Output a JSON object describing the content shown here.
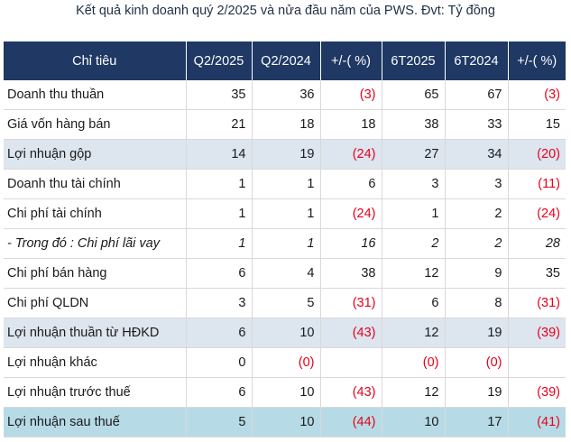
{
  "title": "Kết quả kinh doanh quý 2/2025 và nửa đầu năm của PWS. Đvt: Tỷ đồng",
  "columns": [
    "Chỉ tiêu",
    "Q2/2025",
    "Q2/2024",
    "+/-( %)",
    "6T2025",
    "6T2024",
    "+/-( %)"
  ],
  "rows": [
    {
      "label": "Doanh thu thuần",
      "cells": [
        "35",
        "36",
        "(3)",
        "65",
        "67",
        "(3)"
      ]
    },
    {
      "label": "Giá vốn hàng bán",
      "cells": [
        "21",
        "18",
        "18",
        "38",
        "33",
        "15"
      ]
    },
    {
      "label": "Lợi nhuận gộp",
      "cells": [
        "14",
        "19",
        "(24)",
        "27",
        "34",
        "(20)"
      ]
    },
    {
      "label": "Doanh thu tài chính",
      "cells": [
        "1",
        "1",
        "6",
        "3",
        "3",
        "(11)"
      ]
    },
    {
      "label": "Chi phí tài chính",
      "cells": [
        "1",
        "1",
        "(24)",
        "1",
        "2",
        "(24)"
      ]
    },
    {
      "label": "- Trong đó : Chi phí lãi vay",
      "cells": [
        "1",
        "1",
        "16",
        "2",
        "2",
        "28"
      ]
    },
    {
      "label": "Chi phí bán hàng",
      "cells": [
        "6",
        "4",
        "38",
        "12",
        "9",
        "35"
      ]
    },
    {
      "label": "Chi phí QLDN",
      "cells": [
        "3",
        "5",
        "(31)",
        "6",
        "8",
        "(31)"
      ]
    },
    {
      "label": "Lợi nhuận thuần từ HĐKD",
      "cells": [
        "6",
        "10",
        "(43)",
        "12",
        "19",
        "(39)"
      ]
    },
    {
      "label": "Lợi nhuận khác",
      "cells": [
        "0",
        "(0)",
        "",
        "(0)",
        "(0)",
        ""
      ]
    },
    {
      "label": "Lợi nhuận trước thuế",
      "cells": [
        "6",
        "10",
        "(43)",
        "12",
        "19",
        "(39)"
      ]
    },
    {
      "label": "Lợi nhuận sau thuế",
      "cells": [
        "5",
        "10",
        "(44)",
        "10",
        "17",
        "(41)"
      ]
    }
  ],
  "colors": {
    "header_bg": "#1f3864",
    "highlight_row": "#dde5ef",
    "final_row": "#b7dbe6",
    "negative": "#e8001c"
  }
}
